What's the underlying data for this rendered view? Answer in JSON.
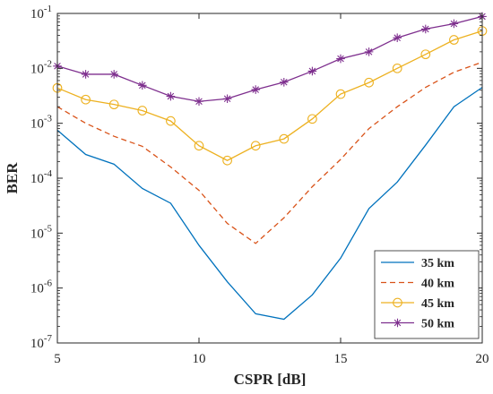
{
  "chart_data": {
    "type": "line",
    "title": "",
    "xlabel": "CSPR [dB]",
    "ylabel": "BER",
    "xlim": [
      5,
      20
    ],
    "ylim": [
      1e-07,
      0.1
    ],
    "yscale": "log",
    "grid": false,
    "legend_position": "bottom-right",
    "x_ticks": [
      5,
      10,
      15,
      20
    ],
    "y_ticks": [
      {
        "value": 1e-07,
        "base": "10",
        "exp": "-7"
      },
      {
        "value": 1e-06,
        "base": "10",
        "exp": "-6"
      },
      {
        "value": 1e-05,
        "base": "10",
        "exp": "-5"
      },
      {
        "value": 0.0001,
        "base": "10",
        "exp": "-4"
      },
      {
        "value": 0.001,
        "base": "10",
        "exp": "-3"
      },
      {
        "value": 0.01,
        "base": "10",
        "exp": "-2"
      },
      {
        "value": 0.1,
        "base": "10",
        "exp": "-1"
      }
    ],
    "x": [
      5,
      6,
      7,
      8,
      9,
      10,
      11,
      12,
      13,
      14,
      15,
      16,
      17,
      18,
      19,
      20
    ],
    "series": [
      {
        "name": "35 km",
        "color": "#0072BD",
        "line_style": "solid",
        "marker": "none",
        "values": [
          0.00075,
          0.00027,
          0.00018,
          6.5e-05,
          3.5e-05,
          6e-06,
          1.3e-06,
          3.4e-07,
          2.7e-07,
          7.5e-07,
          3.5e-06,
          2.8e-05,
          8.5e-05,
          0.0004,
          0.002,
          0.0045
        ]
      },
      {
        "name": "40 km",
        "color": "#D95319",
        "line_style": "dashed",
        "marker": "none",
        "values": [
          0.002,
          0.001,
          0.00058,
          0.00038,
          0.00016,
          6e-05,
          1.5e-05,
          6.5e-06,
          1.9e-05,
          7e-05,
          0.00022,
          0.0008,
          0.002,
          0.0045,
          0.0085,
          0.013
        ]
      },
      {
        "name": "45 km",
        "color": "#EDB120",
        "line_style": "solid",
        "marker": "circle",
        "values": [
          0.0044,
          0.0027,
          0.0022,
          0.0017,
          0.0011,
          0.00039,
          0.00021,
          0.00039,
          0.00052,
          0.0012,
          0.0034,
          0.0055,
          0.01,
          0.018,
          0.033,
          0.048
        ]
      },
      {
        "name": "50 km",
        "color": "#7E2F8E",
        "line_style": "solid",
        "marker": "star",
        "values": [
          0.011,
          0.0078,
          0.0078,
          0.0049,
          0.0031,
          0.0025,
          0.0028,
          0.0041,
          0.0056,
          0.0089,
          0.015,
          0.02,
          0.036,
          0.052,
          0.065,
          0.088
        ]
      }
    ]
  }
}
